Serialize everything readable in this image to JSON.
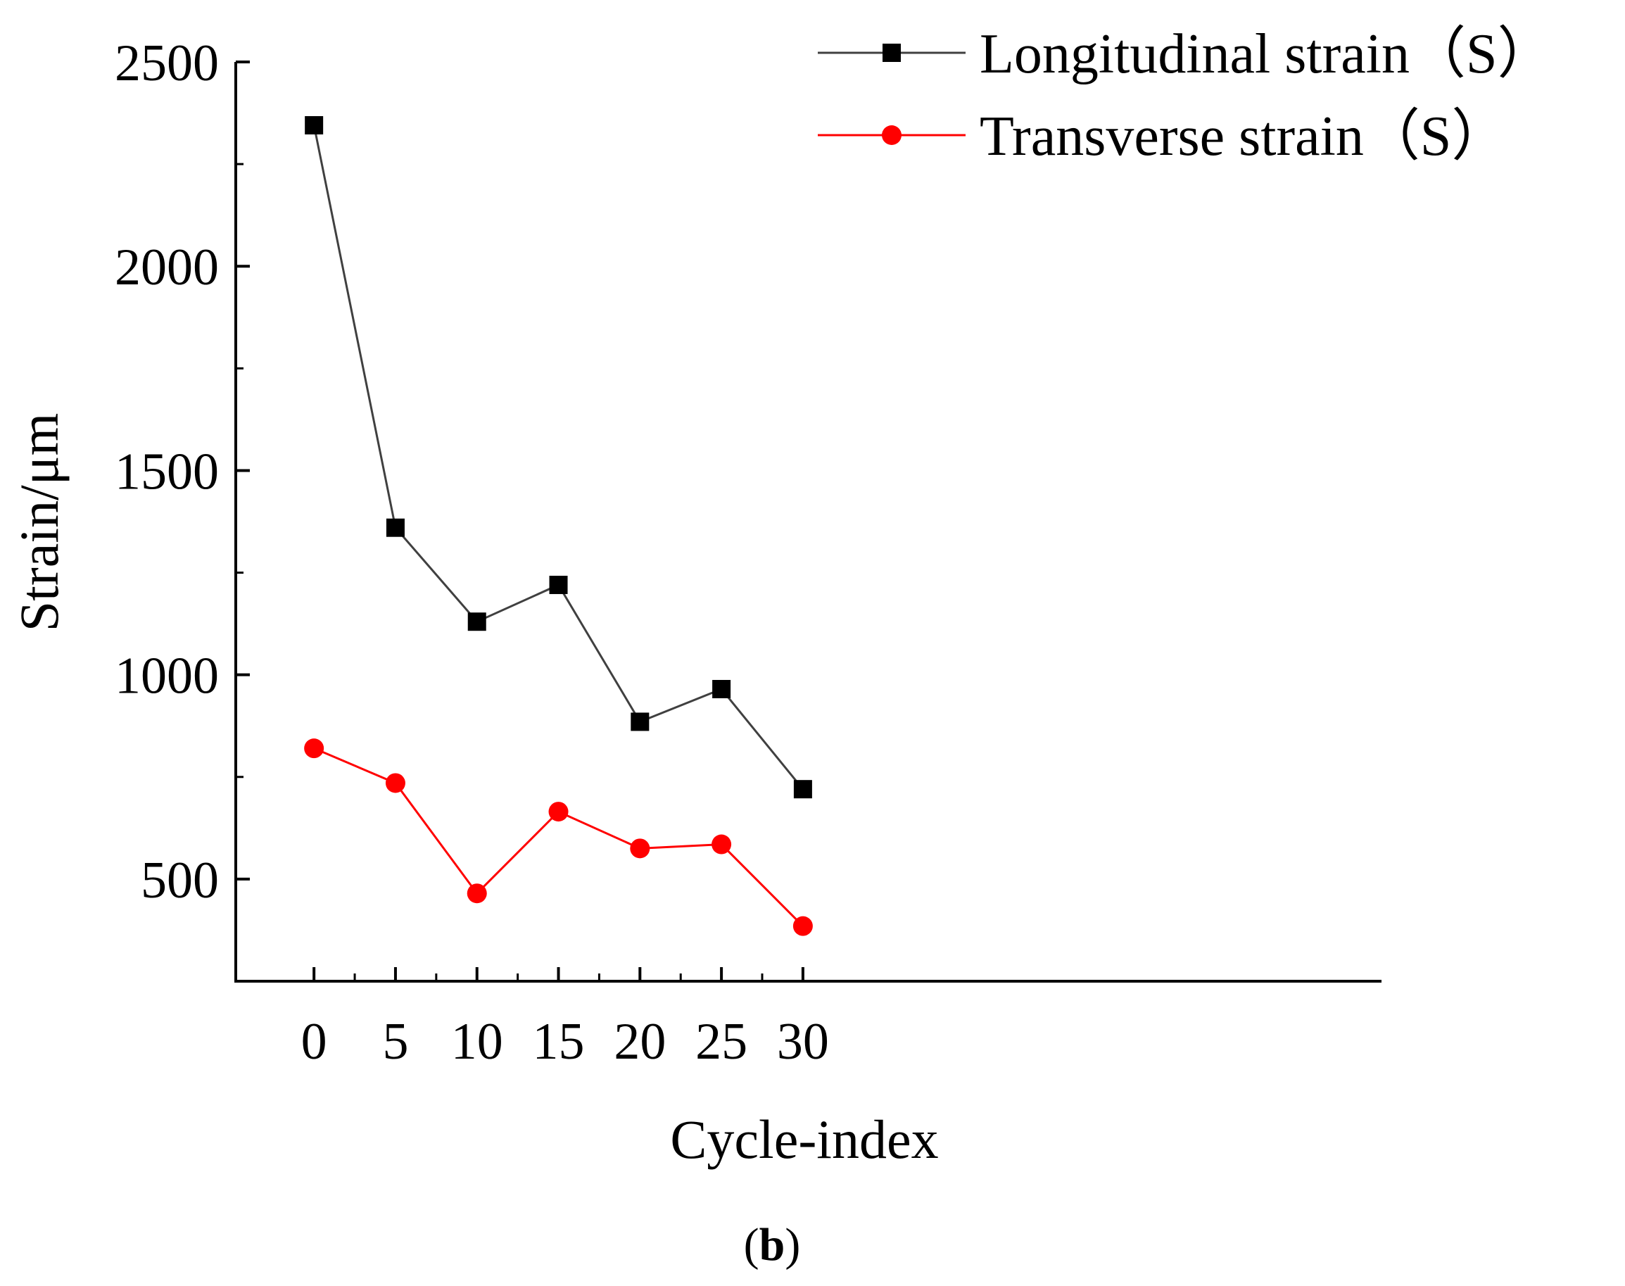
{
  "chart_data": {
    "type": "line",
    "xlabel": "Cycle-index",
    "ylabel": "Strain/μm",
    "xlim": [
      -4.8,
      65.5
    ],
    "ylim": [
      250,
      2500
    ],
    "x_ticks": [
      0,
      5,
      10,
      15,
      20,
      25,
      30
    ],
    "y_ticks": [
      500,
      1000,
      1500,
      2000,
      2500
    ],
    "x": [
      0,
      5,
      10,
      15,
      20,
      25,
      30
    ],
    "grid": false,
    "legend_position": "top-right",
    "series": [
      {
        "name": "Longitudinal strain（S）",
        "color": "#000000",
        "line_color": "#404040",
        "marker": "square",
        "values": [
          2345,
          1360,
          1130,
          1220,
          885,
          965,
          720
        ]
      },
      {
        "name": "Transverse strain（S）",
        "color": "#ff0000",
        "line_color": "#ff0000",
        "marker": "circle",
        "values": [
          820,
          735,
          465,
          665,
          575,
          585,
          385
        ]
      }
    ]
  },
  "caption": {
    "open": "(",
    "letter": "b",
    "close": ")"
  }
}
